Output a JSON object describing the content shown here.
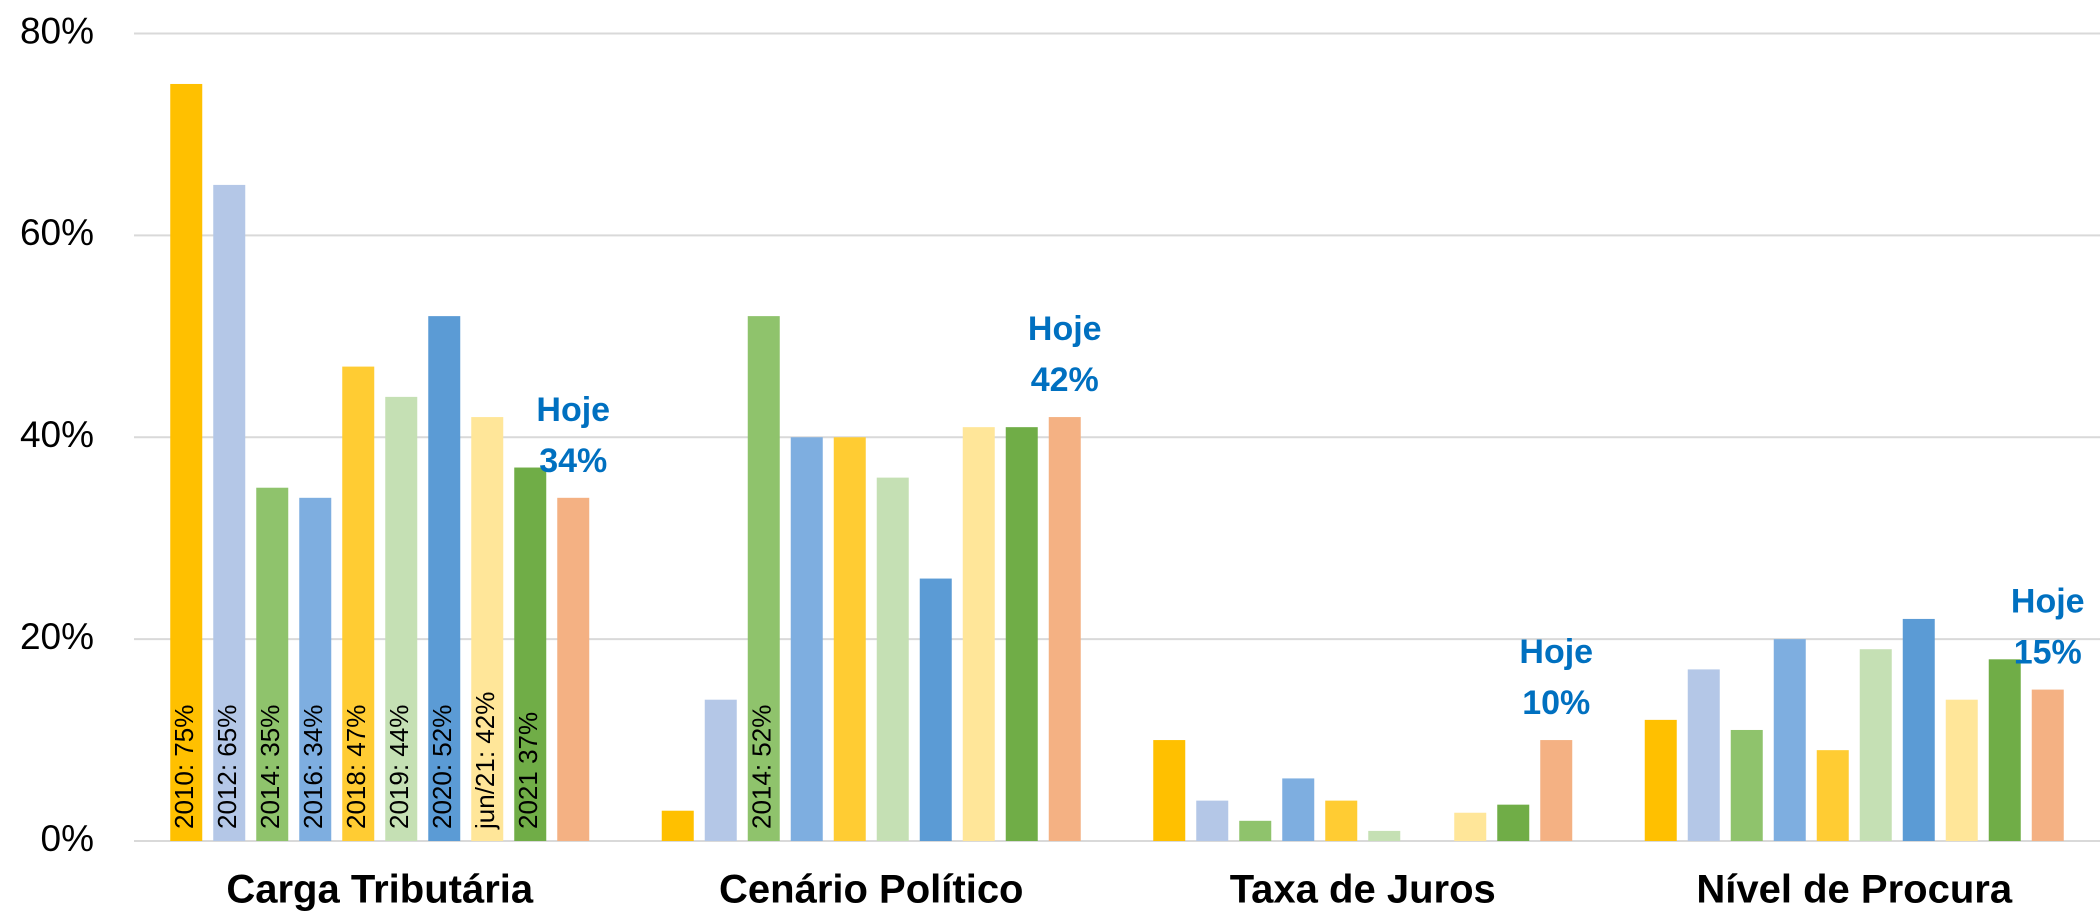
{
  "chart_data": {
    "type": "bar",
    "categories": [
      "Carga Tributária",
      "Cenário Político",
      "Taxa de Juros",
      "Nível de Procura"
    ],
    "ylim": [
      0,
      80
    ],
    "yticks": [
      {
        "value": 0,
        "label": "0%"
      },
      {
        "value": 20,
        "label": "20%"
      },
      {
        "value": 40,
        "label": "40%"
      },
      {
        "value": 60,
        "label": "60%"
      },
      {
        "value": 80,
        "label": "80%"
      }
    ],
    "grid": true,
    "series": [
      {
        "color": "#ffc000",
        "values": [
          75,
          3,
          10,
          12
        ],
        "value_labels": [
          "2010:  75%",
          null,
          null,
          null
        ]
      },
      {
        "color": "#b4c7e7",
        "values": [
          65,
          14,
          4,
          17
        ],
        "value_labels": [
          "2012:  65%",
          null,
          null,
          null
        ]
      },
      {
        "color": "#8fc36c",
        "values": [
          35,
          52,
          2,
          11
        ],
        "value_labels": [
          "2014:  35%",
          "2014:  52%",
          null,
          null
        ]
      },
      {
        "color": "#7eaee0",
        "values": [
          34,
          40,
          6.2,
          20
        ],
        "value_labels": [
          "2016:  34%",
          null,
          null,
          null
        ]
      },
      {
        "color": "#ffcc33",
        "values": [
          47,
          40,
          4,
          9
        ],
        "value_labels": [
          "2018:  47%",
          null,
          null,
          null
        ]
      },
      {
        "color": "#c5e0b4",
        "values": [
          44,
          36,
          1,
          19
        ],
        "value_labels": [
          "2019:  44%",
          null,
          null,
          null
        ]
      },
      {
        "color": "#5b9bd5",
        "values": [
          52,
          26,
          0,
          22
        ],
        "value_labels": [
          "2020:  52%",
          null,
          null,
          null
        ]
      },
      {
        "color": "#ffe699",
        "values": [
          42,
          41,
          2.8,
          14
        ],
        "value_labels": [
          "jun/21: 42%",
          null,
          null,
          null
        ]
      },
      {
        "color": "#70ad47",
        "values": [
          37,
          41,
          3.6,
          18
        ],
        "value_labels": [
          "2021 37%",
          null,
          null,
          null
        ]
      },
      {
        "name": "Hoje",
        "color": "#f4b183",
        "values": [
          34,
          42,
          10,
          15
        ],
        "value_labels": [
          "34%",
          "42%",
          "10%",
          "15%"
        ]
      }
    ]
  }
}
